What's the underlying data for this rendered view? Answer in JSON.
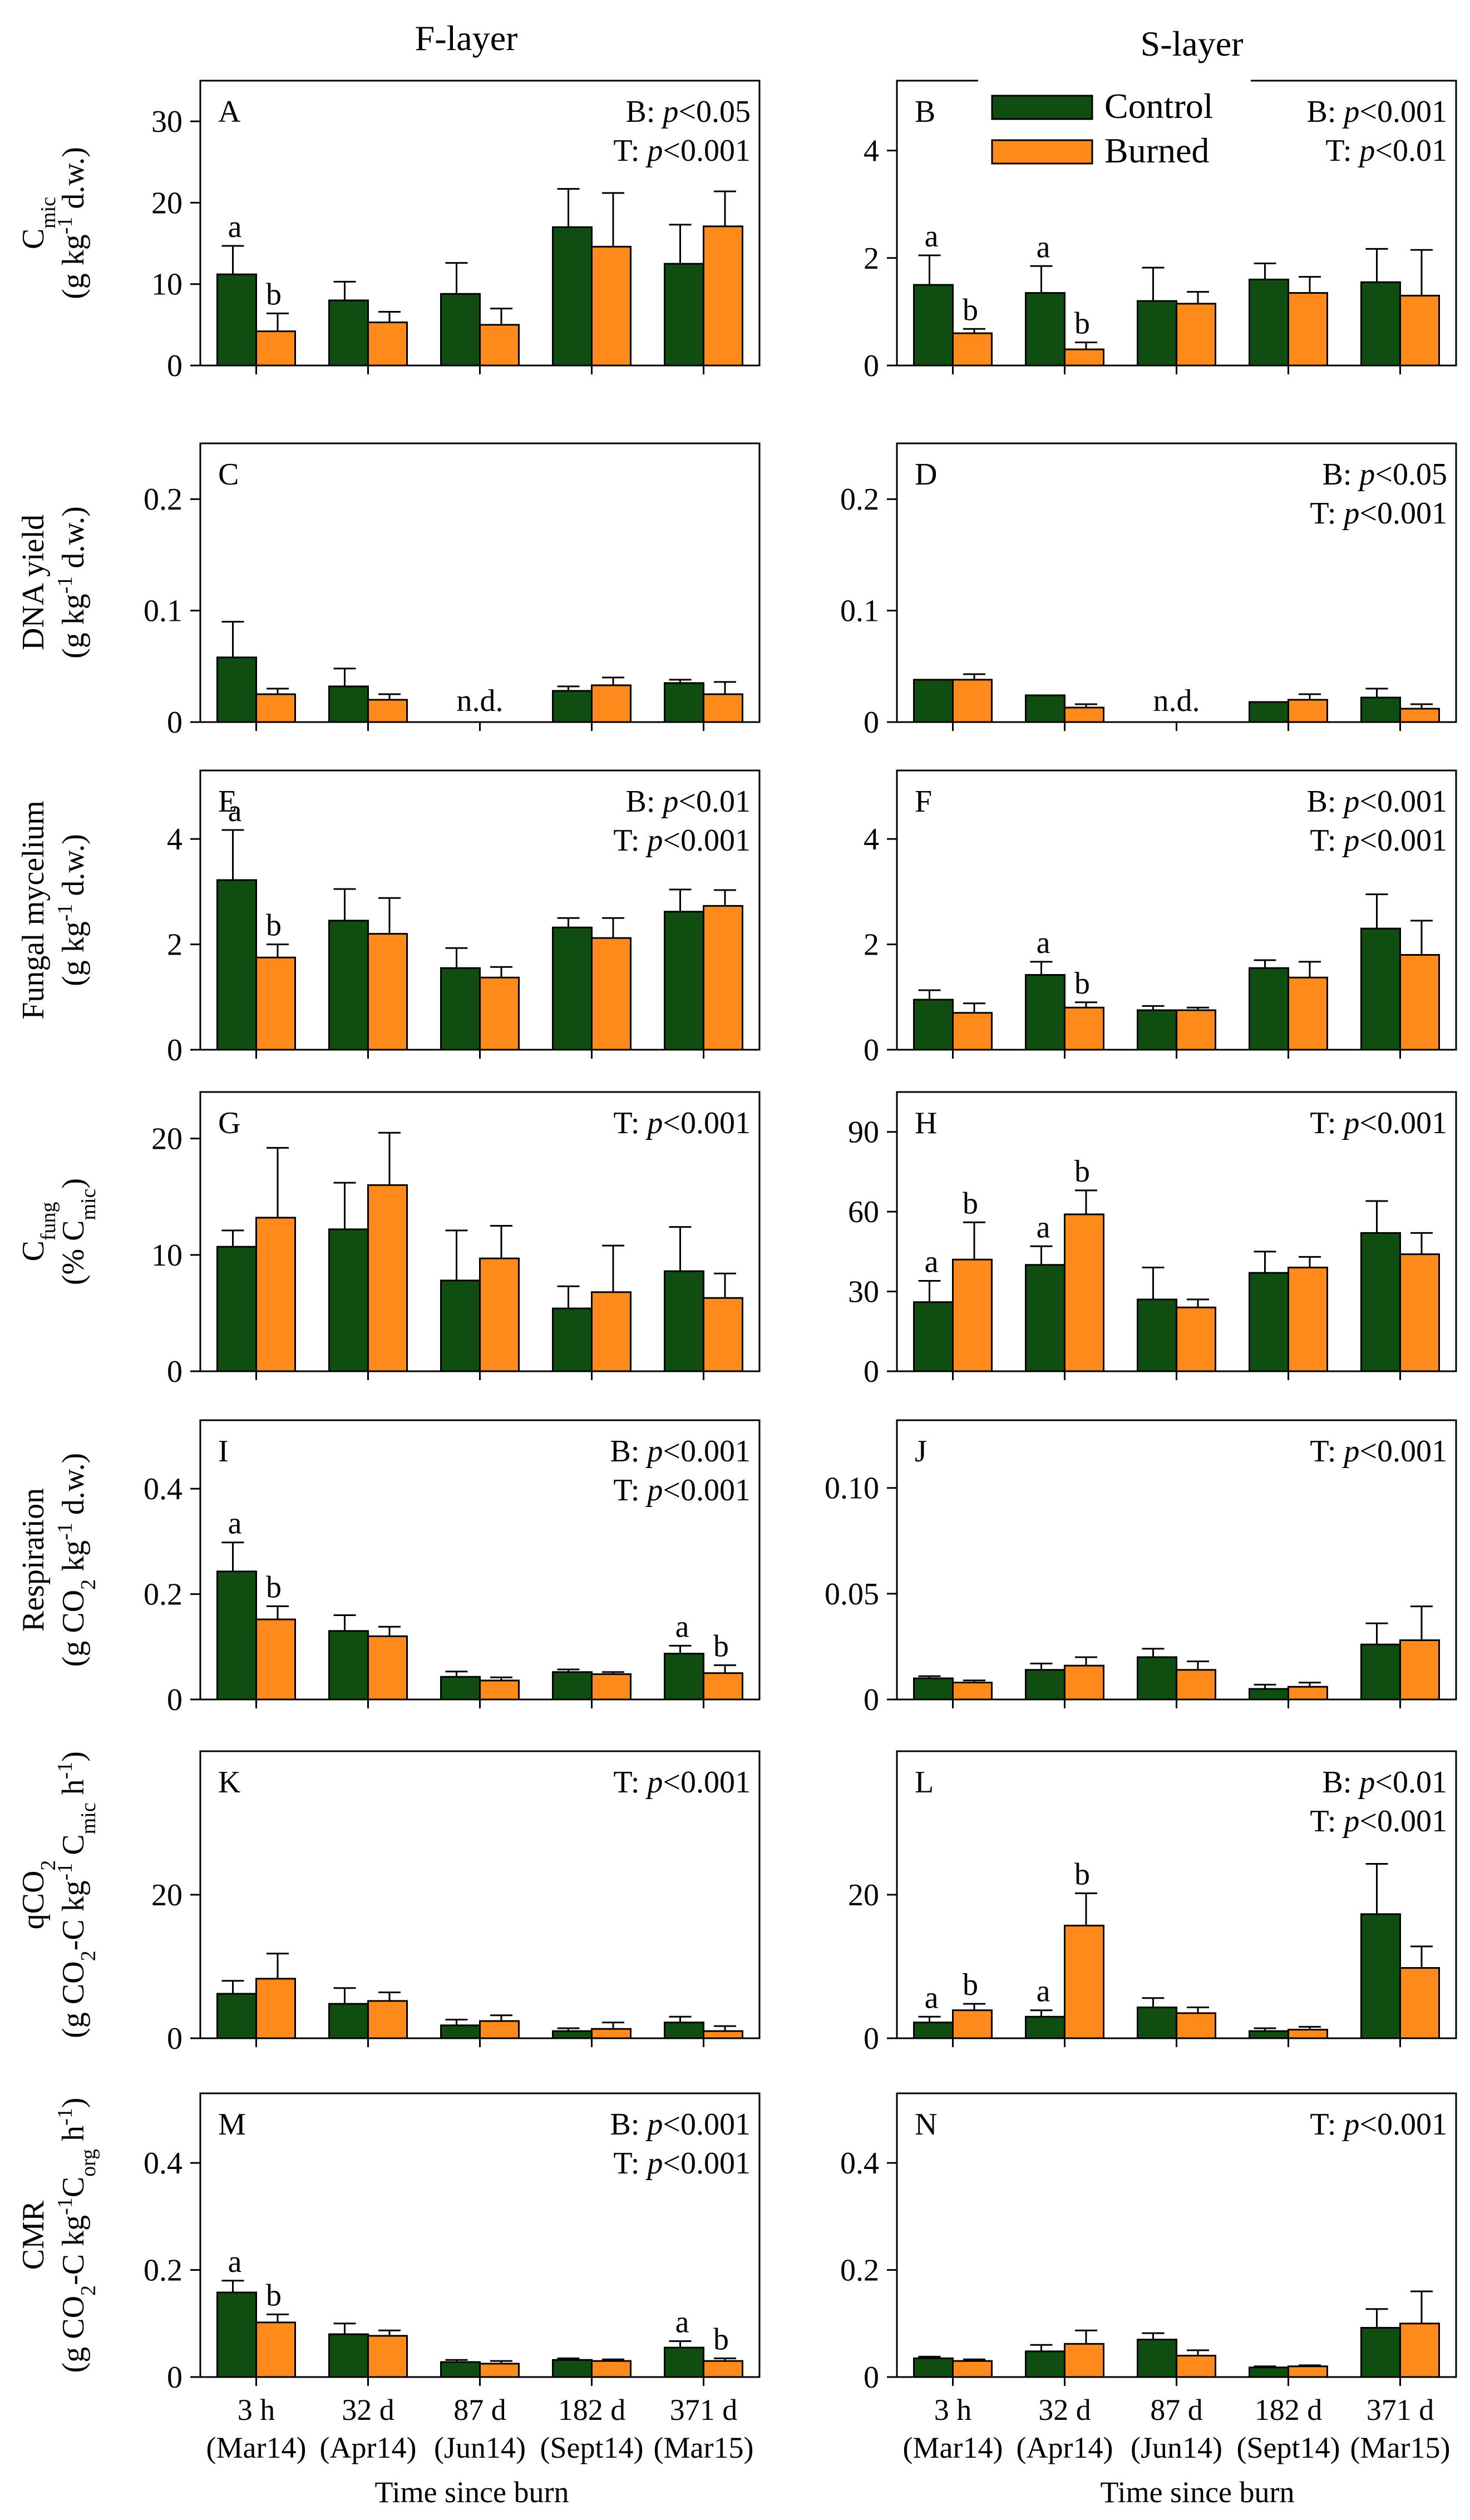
{
  "colors": {
    "control": "#0f4d10",
    "burned": "#ff8a1c",
    "axis": "#000000"
  },
  "column_titles": {
    "left": "F-layer",
    "right": "S-layer"
  },
  "xlabel": "Time since burn",
  "categories": [
    {
      "main": "3 h",
      "sub": "(Mar14)"
    },
    {
      "main": "32 d",
      "sub": "(Apr14)"
    },
    {
      "main": "87 d",
      "sub": "(Jun14)"
    },
    {
      "main": "182 d",
      "sub": "(Sept14)"
    },
    {
      "main": "371 d",
      "sub": "(Mar15)"
    }
  ],
  "legend": {
    "control": "Control",
    "burned": "Burned"
  },
  "row_labels": [
    {
      "line1": "C",
      "sub": "mic",
      "line2": "(g kg",
      "sup": "-1",
      "line2b": " d.w.)"
    },
    {
      "line1": "DNA yield",
      "line2": "(g kg",
      "sup": "-1",
      "line2b": " d.w.)"
    },
    {
      "line1": "Fungal mycelium",
      "line2": "(g kg",
      "sup": "-1",
      "line2b": " d.w.)"
    },
    {
      "line1": "C",
      "sub": "fung",
      "line2": "(% C",
      "sub2": "mic",
      "line2b": ")"
    },
    {
      "line1": "Respiration",
      "line2": "(g CO",
      "sub2": "2",
      "mid": " kg",
      "sup": "-1",
      "line2b": " d.w.)"
    },
    {
      "line1": "qCO",
      "sub": "2",
      "line2": "(g CO",
      "sub2": "2",
      "mid": "-C kg",
      "sup": "-1",
      "mid2": " C",
      "sub3": "mic",
      "line2b": " h",
      "sup2": "-1",
      "line2c": ")"
    },
    {
      "line1": "CMR",
      "line2": "(g CO",
      "sub2": "2",
      "mid": "-C  kg",
      "sup": "-1",
      "mid2": "C",
      "sub3": "org",
      "line2b": " h",
      "sup2": "-1",
      "line2c": ")"
    }
  ],
  "chart_data": [
    {
      "id": "A",
      "type": "bar",
      "layer": "F-layer",
      "ylim": [
        0,
        35
      ],
      "yticks": [
        "0",
        "10",
        "20",
        "30"
      ],
      "series": [
        {
          "name": "Control",
          "values": [
            11.2,
            8.0,
            8.8,
            17.0,
            12.5
          ],
          "errors": [
            3.5,
            2.3,
            3.8,
            4.7,
            4.8
          ]
        },
        {
          "name": "Burned",
          "values": [
            4.2,
            5.3,
            5.0,
            14.6,
            17.1
          ],
          "errors": [
            2.2,
            1.3,
            2.0,
            6.6,
            4.3
          ]
        }
      ],
      "letters": [
        [
          "a",
          "b"
        ],
        null,
        null,
        null,
        null
      ],
      "stats": [
        "B: p<0.05",
        "T: p<0.001"
      ]
    },
    {
      "id": "B",
      "type": "bar",
      "layer": "S-layer",
      "ylim": [
        0,
        5.3
      ],
      "yticks": [
        "0",
        "2",
        "4"
      ],
      "series": [
        {
          "name": "Control",
          "values": [
            1.5,
            1.35,
            1.2,
            1.6,
            1.55
          ],
          "errors": [
            0.55,
            0.5,
            0.62,
            0.3,
            0.62
          ]
        },
        {
          "name": "Burned",
          "values": [
            0.6,
            0.3,
            1.15,
            1.35,
            1.3
          ],
          "errors": [
            0.08,
            0.13,
            0.22,
            0.3,
            0.85
          ]
        }
      ],
      "letters": [
        [
          "a",
          "b"
        ],
        [
          "a",
          "b"
        ],
        null,
        null,
        null
      ],
      "stats": [
        "B: p<0.001",
        "T: p<0.01"
      ],
      "legend": true
    },
    {
      "id": "C",
      "type": "bar",
      "layer": "F-layer",
      "ylim": [
        0,
        0.25
      ],
      "yticks": [
        "0",
        "0.1",
        "0.2"
      ],
      "series": [
        {
          "name": "Control",
          "values": [
            0.058,
            0.032,
            null,
            0.028,
            0.035
          ],
          "errors": [
            0.032,
            0.016,
            null,
            0.004,
            0.003
          ]
        },
        {
          "name": "Burned",
          "values": [
            0.025,
            0.02,
            null,
            0.033,
            0.025
          ],
          "errors": [
            0.005,
            0.005,
            null,
            0.007,
            0.011
          ]
        }
      ],
      "na_label": "n.d.",
      "na_index": 2,
      "stats": []
    },
    {
      "id": "D",
      "type": "bar",
      "layer": "S-layer",
      "ylim": [
        0,
        0.25
      ],
      "yticks": [
        "0",
        "0.1",
        "0.2"
      ],
      "series": [
        {
          "name": "Control",
          "values": [
            0.038,
            0.024,
            null,
            0.018,
            0.022
          ],
          "errors": [
            0.0,
            0.0,
            null,
            0.0,
            0.008
          ]
        },
        {
          "name": "Burned",
          "values": [
            0.038,
            0.013,
            null,
            0.02,
            0.012
          ],
          "errors": [
            0.005,
            0.003,
            null,
            0.005,
            0.004
          ]
        }
      ],
      "na_label": "n.d.",
      "na_index": 2,
      "stats": [
        "B: p<0.05",
        "T: p<0.001"
      ]
    },
    {
      "id": "E",
      "type": "bar",
      "layer": "F-layer",
      "ylim": [
        0,
        5.3
      ],
      "yticks": [
        "0",
        "2",
        "4"
      ],
      "series": [
        {
          "name": "Control",
          "values": [
            3.22,
            2.45,
            1.55,
            2.32,
            2.62
          ],
          "errors": [
            0.95,
            0.6,
            0.38,
            0.18,
            0.42
          ]
        },
        {
          "name": "Burned",
          "values": [
            1.75,
            2.2,
            1.37,
            2.12,
            2.73
          ],
          "errors": [
            0.25,
            0.68,
            0.2,
            0.38,
            0.3
          ]
        }
      ],
      "letters": [
        [
          "a",
          "b"
        ],
        null,
        null,
        null,
        null
      ],
      "stats": [
        "B: p<0.01",
        "T: p<0.001"
      ]
    },
    {
      "id": "F",
      "type": "bar",
      "layer": "S-layer",
      "ylim": [
        0,
        5.3
      ],
      "yticks": [
        "0",
        "2",
        "4"
      ],
      "series": [
        {
          "name": "Control",
          "values": [
            0.95,
            1.42,
            0.75,
            1.55,
            2.3
          ],
          "errors": [
            0.18,
            0.25,
            0.08,
            0.15,
            0.65
          ]
        },
        {
          "name": "Burned",
          "values": [
            0.7,
            0.8,
            0.75,
            1.37,
            1.8
          ],
          "errors": [
            0.18,
            0.1,
            0.05,
            0.3,
            0.65
          ]
        }
      ],
      "letters": [
        null,
        [
          "a",
          "b"
        ],
        null,
        null,
        null
      ],
      "stats": [
        "B: p<0.001",
        "T: p<0.001"
      ]
    },
    {
      "id": "G",
      "type": "bar",
      "layer": "F-layer",
      "ylim": [
        0,
        24
      ],
      "yticks": [
        "0",
        "10",
        "20"
      ],
      "series": [
        {
          "name": "Control",
          "values": [
            10.7,
            12.2,
            7.8,
            5.4,
            8.6
          ],
          "errors": [
            1.4,
            4.0,
            4.3,
            1.9,
            3.8
          ]
        },
        {
          "name": "Burned",
          "values": [
            13.2,
            16.0,
            9.7,
            6.8,
            6.3
          ],
          "errors": [
            6.0,
            4.5,
            2.8,
            4.0,
            2.1
          ]
        }
      ],
      "stats": [
        "T: p<0.001"
      ]
    },
    {
      "id": "H",
      "type": "bar",
      "layer": "S-layer",
      "ylim": [
        0,
        105
      ],
      "yticks": [
        "0",
        "30",
        "60",
        "90"
      ],
      "series": [
        {
          "name": "Control",
          "values": [
            26,
            40,
            27,
            37,
            52
          ],
          "errors": [
            8,
            7,
            12,
            8,
            12
          ]
        },
        {
          "name": "Burned",
          "values": [
            42,
            59,
            24,
            39,
            44
          ],
          "errors": [
            14,
            9,
            3,
            4,
            8
          ]
        }
      ],
      "letters": [
        [
          "a",
          "b"
        ],
        [
          "a",
          "b"
        ],
        null,
        null,
        null
      ],
      "stats": [
        "T: p<0.001"
      ]
    },
    {
      "id": "I",
      "type": "bar",
      "layer": "F-layer",
      "ylim": [
        0,
        0.53
      ],
      "yticks": [
        "0",
        "0.2",
        "0.4"
      ],
      "series": [
        {
          "name": "Control",
          "values": [
            0.243,
            0.13,
            0.043,
            0.052,
            0.087
          ],
          "errors": [
            0.055,
            0.03,
            0.01,
            0.005,
            0.015
          ]
        },
        {
          "name": "Burned",
          "values": [
            0.152,
            0.12,
            0.036,
            0.048,
            0.05
          ],
          "errors": [
            0.025,
            0.018,
            0.006,
            0.004,
            0.015
          ]
        }
      ],
      "letters": [
        [
          "a",
          "b"
        ],
        null,
        null,
        null,
        [
          "a",
          "b"
        ]
      ],
      "stats": [
        "B: p<0.001",
        "T: p<0.001"
      ]
    },
    {
      "id": "J",
      "type": "bar",
      "layer": "S-layer",
      "ylim": [
        0,
        0.132
      ],
      "yticks": [
        "0",
        "0.05",
        "0.10"
      ],
      "series": [
        {
          "name": "Control",
          "values": [
            0.01,
            0.014,
            0.02,
            0.005,
            0.026
          ],
          "errors": [
            0.001,
            0.003,
            0.004,
            0.002,
            0.01
          ]
        },
        {
          "name": "Burned",
          "values": [
            0.008,
            0.016,
            0.014,
            0.006,
            0.028
          ],
          "errors": [
            0.001,
            0.004,
            0.004,
            0.002,
            0.016
          ]
        }
      ],
      "stats": [
        "T: p<0.001"
      ]
    },
    {
      "id": "K",
      "type": "bar",
      "layer": "F-layer",
      "ylim": [
        0,
        40
      ],
      "yticks": [
        "0",
        "20"
      ],
      "series": [
        {
          "name": "Control",
          "values": [
            6.2,
            4.8,
            1.8,
            1.0,
            2.2
          ],
          "errors": [
            1.8,
            2.2,
            0.8,
            0.4,
            0.8
          ]
        },
        {
          "name": "Burned",
          "values": [
            8.3,
            5.2,
            2.4,
            1.3,
            1.0
          ],
          "errors": [
            3.5,
            1.2,
            0.8,
            0.9,
            0.7
          ]
        }
      ],
      "stats": [
        "T: p<0.001"
      ]
    },
    {
      "id": "L",
      "type": "bar",
      "layer": "S-layer",
      "ylim": [
        0,
        40
      ],
      "yticks": [
        "0",
        "20"
      ],
      "series": [
        {
          "name": "Control",
          "values": [
            2.2,
            3.0,
            4.3,
            1.0,
            17.3
          ],
          "errors": [
            0.8,
            0.9,
            1.3,
            0.4,
            7.0
          ]
        },
        {
          "name": "Burned",
          "values": [
            3.9,
            15.7,
            3.5,
            1.2,
            9.8
          ],
          "errors": [
            0.9,
            4.5,
            0.8,
            0.4,
            3.0
          ]
        }
      ],
      "letters": [
        [
          "a",
          "b"
        ],
        [
          "a",
          "b"
        ],
        null,
        null,
        null
      ],
      "stats": [
        "B: p<0.01",
        "T: p<0.001"
      ]
    },
    {
      "id": "M",
      "type": "bar",
      "layer": "F-layer",
      "ylim": [
        0,
        0.53
      ],
      "yticks": [
        "0",
        "0.2",
        "0.4"
      ],
      "series": [
        {
          "name": "Control",
          "values": [
            0.158,
            0.08,
            0.028,
            0.032,
            0.055
          ],
          "errors": [
            0.022,
            0.02,
            0.004,
            0.003,
            0.012
          ]
        },
        {
          "name": "Burned",
          "values": [
            0.102,
            0.077,
            0.025,
            0.03,
            0.03
          ],
          "errors": [
            0.015,
            0.01,
            0.005,
            0.003,
            0.005
          ]
        }
      ],
      "letters": [
        [
          "a",
          "b"
        ],
        null,
        null,
        null,
        [
          "a",
          "b"
        ]
      ],
      "stats": [
        "B: p<0.001",
        "T: p<0.001"
      ]
    },
    {
      "id": "N",
      "type": "bar",
      "layer": "S-layer",
      "ylim": [
        0,
        0.53
      ],
      "yticks": [
        "0",
        "0.2",
        "0.4"
      ],
      "series": [
        {
          "name": "Control",
          "values": [
            0.035,
            0.048,
            0.07,
            0.018,
            0.092
          ],
          "errors": [
            0.003,
            0.012,
            0.012,
            0.002,
            0.035
          ]
        },
        {
          "name": "Burned",
          "values": [
            0.03,
            0.062,
            0.04,
            0.02,
            0.1
          ],
          "errors": [
            0.003,
            0.025,
            0.01,
            0.002,
            0.06
          ]
        }
      ],
      "stats": [
        "T: p<0.001"
      ]
    }
  ]
}
